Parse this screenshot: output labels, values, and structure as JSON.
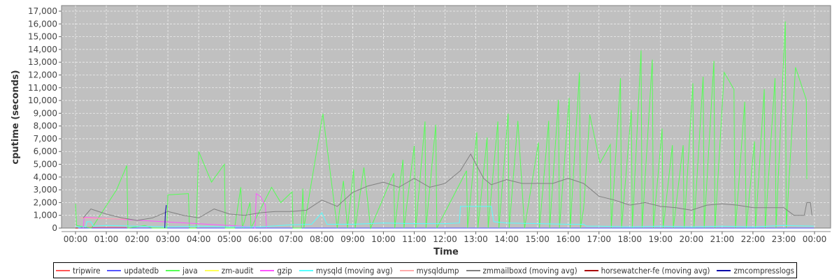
{
  "chart_data": {
    "type": "line",
    "xlabel": "Time",
    "ylabel": "cputime (seconds)",
    "ylim": [
      0,
      17500
    ],
    "xlim": [
      "00:00",
      "24:00"
    ],
    "x_ticks": [
      "00:00",
      "01:00",
      "02:00",
      "03:00",
      "04:00",
      "05:00",
      "06:00",
      "07:00",
      "08:00",
      "09:00",
      "10:00",
      "11:00",
      "12:00",
      "13:00",
      "14:00",
      "15:00",
      "16:00",
      "17:00",
      "18:00",
      "19:00",
      "20:00",
      "21:00",
      "22:00",
      "23:00",
      "00:00"
    ],
    "y_ticks": [
      "0",
      "1,000",
      "2,000",
      "3,000",
      "4,000",
      "5,000",
      "6,000",
      "7,000",
      "8,000",
      "9,000",
      "10,000",
      "11,000",
      "12,000",
      "13,000",
      "14,000",
      "15,000",
      "16,000",
      "17,000"
    ],
    "grid": true,
    "legend_position": "bottom",
    "background": "#c0c0c0",
    "series": [
      {
        "name": "tripwire",
        "color": "#ff5555",
        "points": [
          [
            "00:10",
            50
          ],
          [
            "01:40",
            50
          ]
        ]
      },
      {
        "name": "updatedb",
        "color": "#5555ff",
        "points": [
          [
            "00:00",
            0
          ],
          [
            "23:59",
            0
          ]
        ]
      },
      {
        "name": "java",
        "color": "#55ff55",
        "points": [
          [
            "00:00",
            1900
          ],
          [
            "00:02",
            200
          ],
          [
            "00:30",
            0
          ],
          [
            "00:35",
            200
          ],
          [
            "01:20",
            3000
          ],
          [
            "01:40",
            4900
          ],
          [
            "01:42",
            0
          ],
          [
            "02:15",
            200
          ],
          [
            "02:30",
            0
          ],
          [
            "02:58",
            0
          ],
          [
            "03:00",
            2600
          ],
          [
            "03:40",
            2700
          ],
          [
            "03:42",
            0
          ],
          [
            "03:55",
            0
          ],
          [
            "04:00",
            6000
          ],
          [
            "04:25",
            3600
          ],
          [
            "04:50",
            5000
          ],
          [
            "04:52",
            0
          ],
          [
            "05:10",
            0
          ],
          [
            "05:22",
            3200
          ],
          [
            "05:25",
            0
          ],
          [
            "05:40",
            2000
          ],
          [
            "05:42",
            0
          ],
          [
            "06:22",
            3200
          ],
          [
            "06:40",
            2000
          ],
          [
            "07:02",
            2840
          ],
          [
            "07:04",
            0
          ],
          [
            "07:20",
            0
          ],
          [
            "07:23",
            3100
          ],
          [
            "07:25",
            0
          ],
          [
            "08:02",
            8960
          ],
          [
            "08:30",
            0
          ],
          [
            "08:42",
            3700
          ],
          [
            "08:50",
            0
          ],
          [
            "09:02",
            4600
          ],
          [
            "09:05",
            0
          ],
          [
            "09:22",
            4750
          ],
          [
            "09:35",
            0
          ],
          [
            "10:20",
            4300
          ],
          [
            "10:22",
            0
          ],
          [
            "10:38",
            5350
          ],
          [
            "10:40",
            0
          ],
          [
            "11:00",
            6450
          ],
          [
            "11:03",
            0
          ],
          [
            "11:21",
            8360
          ],
          [
            "11:23",
            0
          ],
          [
            "11:42",
            8100
          ],
          [
            "11:44",
            0
          ],
          [
            "12:42",
            4500
          ],
          [
            "12:44",
            0
          ],
          [
            "13:02",
            7500
          ],
          [
            "13:04",
            0
          ],
          [
            "13:22",
            7100
          ],
          [
            "13:24",
            0
          ],
          [
            "13:43",
            8360
          ],
          [
            "13:45",
            0
          ],
          [
            "14:03",
            8960
          ],
          [
            "14:05",
            0
          ],
          [
            "14:22",
            8400
          ],
          [
            "14:35",
            0
          ],
          [
            "15:02",
            6700
          ],
          [
            "15:04",
            0
          ],
          [
            "15:22",
            8400
          ],
          [
            "15:24",
            0
          ],
          [
            "15:41",
            10050
          ],
          [
            "15:43",
            0
          ],
          [
            "16:02",
            10200
          ],
          [
            "16:04",
            0
          ],
          [
            "16:22",
            12200
          ],
          [
            "16:24",
            0
          ],
          [
            "16:30",
            1500
          ],
          [
            "16:42",
            8900
          ],
          [
            "17:02",
            5100
          ],
          [
            "17:22",
            6550
          ],
          [
            "17:24",
            0
          ],
          [
            "17:42",
            11750
          ],
          [
            "17:44",
            0
          ],
          [
            "18:03",
            9250
          ],
          [
            "18:05",
            0
          ],
          [
            "18:22",
            13930
          ],
          [
            "18:24",
            0
          ],
          [
            "18:44",
            13200
          ],
          [
            "18:46",
            0
          ],
          [
            "19:03",
            7800
          ],
          [
            "19:05",
            0
          ],
          [
            "19:23",
            6500
          ],
          [
            "19:25",
            0
          ],
          [
            "19:44",
            6500
          ],
          [
            "19:46",
            0
          ],
          [
            "20:03",
            11350
          ],
          [
            "20:05",
            0
          ],
          [
            "20:23",
            11860
          ],
          [
            "20:25",
            0
          ],
          [
            "20:44",
            13100
          ],
          [
            "20:46",
            0
          ],
          [
            "21:04",
            12200
          ],
          [
            "21:23",
            10870
          ],
          [
            "21:24",
            4750
          ],
          [
            "21:26",
            0
          ],
          [
            "21:44",
            9900
          ],
          [
            "21:45",
            5950
          ],
          [
            "21:47",
            0
          ],
          [
            "22:03",
            6800
          ],
          [
            "22:05",
            0
          ],
          [
            "22:22",
            10900
          ],
          [
            "22:24",
            0
          ],
          [
            "22:43",
            11750
          ],
          [
            "22:45",
            0
          ],
          [
            "23:03",
            16200
          ],
          [
            "23:05",
            0
          ],
          [
            "23:23",
            12600
          ],
          [
            "23:44",
            10050
          ],
          [
            "23:45",
            3830
          ]
        ]
      },
      {
        "name": "zm-audit",
        "color": "#ffff55",
        "points": [
          [
            "00:00",
            0
          ],
          [
            "00:05",
            0
          ]
        ]
      },
      {
        "name": "gzip",
        "color": "#ff55ff",
        "points": [
          [
            "00:15",
            0
          ],
          [
            "00:17",
            850
          ],
          [
            "05:45",
            100
          ],
          [
            "05:50",
            0
          ],
          [
            "05:52",
            2700
          ],
          [
            "06:00",
            2500
          ],
          [
            "06:10",
            1800
          ],
          [
            "06:12",
            0
          ]
        ]
      },
      {
        "name": "mysqld (moving avg)",
        "color": "#55ffff",
        "points": [
          [
            "00:00",
            100
          ],
          [
            "00:20",
            100
          ],
          [
            "00:22",
            500
          ],
          [
            "00:30",
            500
          ],
          [
            "00:35",
            150
          ],
          [
            "01:00",
            200
          ],
          [
            "02:00",
            150
          ],
          [
            "03:00",
            100
          ],
          [
            "04:00",
            150
          ],
          [
            "05:00",
            100
          ],
          [
            "06:00",
            100
          ],
          [
            "07:00",
            250
          ],
          [
            "07:40",
            300
          ],
          [
            "08:00",
            1200
          ],
          [
            "08:10",
            300
          ],
          [
            "09:00",
            300
          ],
          [
            "10:00",
            400
          ],
          [
            "11:00",
            350
          ],
          [
            "12:00",
            350
          ],
          [
            "12:28",
            400
          ],
          [
            "12:30",
            1700
          ],
          [
            "13:30",
            1700
          ],
          [
            "13:35",
            500
          ],
          [
            "14:00",
            400
          ],
          [
            "15:00",
            350
          ],
          [
            "16:00",
            300
          ],
          [
            "16:30",
            300
          ],
          [
            "16:35",
            150
          ],
          [
            "17:00",
            150
          ],
          [
            "18:00",
            100
          ],
          [
            "19:00",
            150
          ],
          [
            "20:00",
            100
          ],
          [
            "21:00",
            150
          ],
          [
            "22:00",
            100
          ],
          [
            "23:00",
            200
          ],
          [
            "23:59",
            150
          ]
        ]
      },
      {
        "name": "mysqldump",
        "color": "#ffaaaa",
        "points": [
          [
            "00:10",
            800
          ],
          [
            "01:40",
            700
          ]
        ]
      },
      {
        "name": "zmmailboxd (moving avg)",
        "color": "#808080",
        "points": [
          [
            "00:15",
            800
          ],
          [
            "00:30",
            1500
          ],
          [
            "01:00",
            1100
          ],
          [
            "01:30",
            800
          ],
          [
            "02:00",
            600
          ],
          [
            "02:30",
            800
          ],
          [
            "03:00",
            1300
          ],
          [
            "03:30",
            1000
          ],
          [
            "04:00",
            800
          ],
          [
            "04:30",
            1500
          ],
          [
            "05:00",
            1100
          ],
          [
            "05:30",
            1000
          ],
          [
            "06:00",
            1200
          ],
          [
            "06:30",
            1300
          ],
          [
            "07:00",
            1300
          ],
          [
            "07:30",
            1400
          ],
          [
            "08:00",
            2200
          ],
          [
            "08:30",
            1700
          ],
          [
            "09:00",
            2800
          ],
          [
            "09:30",
            3300
          ],
          [
            "10:00",
            3600
          ],
          [
            "10:30",
            3200
          ],
          [
            "11:00",
            3900
          ],
          [
            "11:30",
            3200
          ],
          [
            "12:00",
            3500
          ],
          [
            "12:30",
            4500
          ],
          [
            "12:50",
            5800
          ],
          [
            "13:15",
            3900
          ],
          [
            "13:30",
            3400
          ],
          [
            "14:00",
            3800
          ],
          [
            "14:30",
            3500
          ],
          [
            "15:00",
            3500
          ],
          [
            "15:30",
            3500
          ],
          [
            "16:00",
            3900
          ],
          [
            "16:30",
            3500
          ],
          [
            "17:00",
            2500
          ],
          [
            "17:30",
            2200
          ],
          [
            "18:00",
            1800
          ],
          [
            "18:30",
            2000
          ],
          [
            "19:00",
            1700
          ],
          [
            "19:30",
            1600
          ],
          [
            "20:00",
            1400
          ],
          [
            "20:30",
            1800
          ],
          [
            "21:00",
            1900
          ],
          [
            "21:30",
            1800
          ],
          [
            "22:00",
            1600
          ],
          [
            "22:30",
            1600
          ],
          [
            "23:00",
            1600
          ],
          [
            "23:20",
            1000
          ],
          [
            "23:40",
            1000
          ],
          [
            "23:45",
            2000
          ],
          [
            "23:52",
            2000
          ],
          [
            "23:55",
            1000
          ]
        ]
      },
      {
        "name": "horsewatcher-fe (moving avg)",
        "color": "#aa0000",
        "points": [
          [
            "00:00",
            0
          ],
          [
            "00:05",
            0
          ]
        ]
      },
      {
        "name": "zmcompresslogs",
        "color": "#0000aa",
        "points": [
          [
            "02:54",
            0
          ],
          [
            "02:55",
            1200
          ],
          [
            "02:57",
            1800
          ]
        ]
      }
    ]
  }
}
